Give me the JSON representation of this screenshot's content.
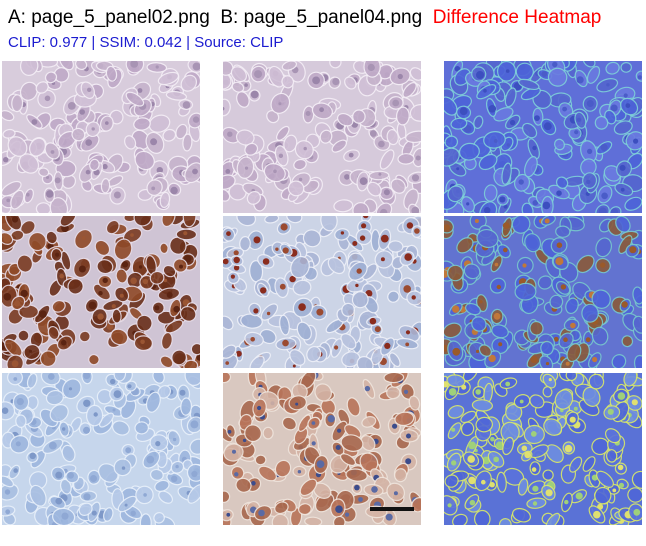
{
  "header": {
    "label_a": "A: page_5_panel02.png",
    "label_b": "B: page_5_panel04.png",
    "label_heatmap": "Difference Heatmap",
    "metrics": "CLIP: 0.977 | SSIM: 0.042 | Source: CLIP"
  },
  "colors": {
    "metrics_text": "#1b1bd0",
    "heatmap_title": "#ff0000"
  },
  "panels": [
    {
      "id": "A-row1",
      "stain": "pale-purple-cells"
    },
    {
      "id": "B-row1",
      "stain": "pale-purple-cells"
    },
    {
      "id": "H-row1",
      "stain": "blue-heatmap"
    },
    {
      "id": "A-row2",
      "stain": "dense-brown-nuclei"
    },
    {
      "id": "B-row2",
      "stain": "sparse-brown-nuclei"
    },
    {
      "id": "H-row2",
      "stain": "blue-heatmap-brown"
    },
    {
      "id": "A-row3",
      "stain": "pale-blue-cells"
    },
    {
      "id": "B-row3",
      "stain": "brown-streaks-blue-nuclei"
    },
    {
      "id": "H-row3",
      "stain": "blue-heatmap-yellow"
    }
  ]
}
